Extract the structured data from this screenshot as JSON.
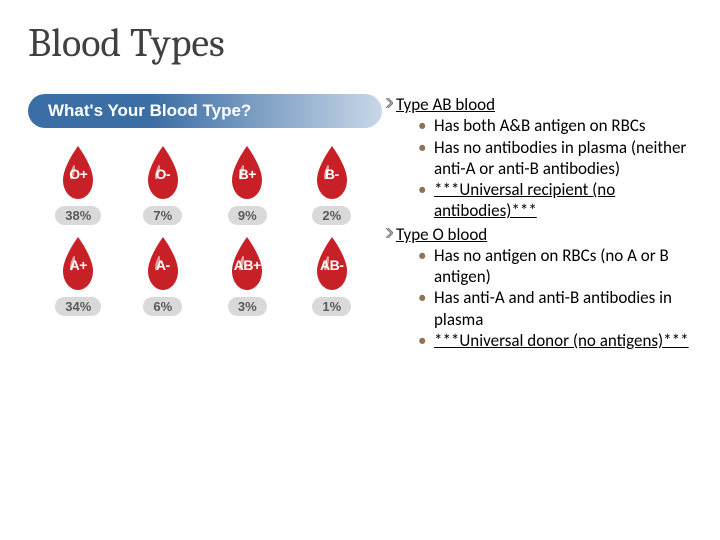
{
  "title": "Blood Types",
  "banner": {
    "text": "What's Your Blood Type?",
    "text_color": "#ffffff",
    "grad_left": "#3b6ea5",
    "grad_right": "#c9d7e8"
  },
  "drop_fill": "#c72127",
  "pct_bg": "#d9d9d9",
  "pct_color": "#5a5a5a",
  "blood_rows": [
    [
      {
        "label": "O+",
        "pct": "38%"
      },
      {
        "label": "O-",
        "pct": "7%"
      },
      {
        "label": "B+",
        "pct": "9%"
      },
      {
        "label": "B-",
        "pct": "2%"
      }
    ],
    [
      {
        "label": "A+",
        "pct": "34%"
      },
      {
        "label": "A-",
        "pct": "6%"
      },
      {
        "label": "AB+",
        "pct": "3%"
      },
      {
        "label": "AB-",
        "pct": "1%"
      }
    ]
  ],
  "marker_color": "#7f7f7f",
  "bullet_color": "#927155",
  "sections": [
    {
      "heading": "Type AB blood",
      "items": [
        {
          "text": "Has both A&B antigen on RBCs",
          "underline": false
        },
        {
          "text": "Has no antibodies in plasma (neither anti-A or anti-B antibodies)",
          "underline": false
        },
        {
          "text": "***Universal recipient (no antibodies)***",
          "underline": true
        }
      ]
    },
    {
      "heading": "Type O blood",
      "items": [
        {
          "text": "Has no antigen on RBCs (no A or B antigen)",
          "underline": false
        },
        {
          "text": "Has anti-A and anti-B antibodies in plasma",
          "underline": false
        },
        {
          "text": "***Universal donor (no antigens)***",
          "underline": true
        }
      ]
    }
  ]
}
